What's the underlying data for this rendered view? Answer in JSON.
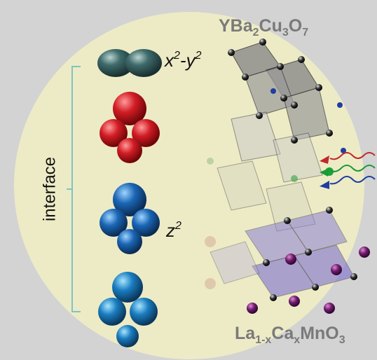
{
  "labels": {
    "top_formula": [
      "YBa",
      "2",
      "Cu",
      "3",
      "O",
      "7"
    ],
    "bottom_formula": [
      "La",
      "1-x",
      "Ca",
      "x",
      "MnO",
      "3"
    ],
    "orbital_top": [
      "x",
      "2",
      "-y",
      "2"
    ],
    "orbital_middle": [
      "z",
      "2"
    ],
    "interface": "interface"
  }
}
